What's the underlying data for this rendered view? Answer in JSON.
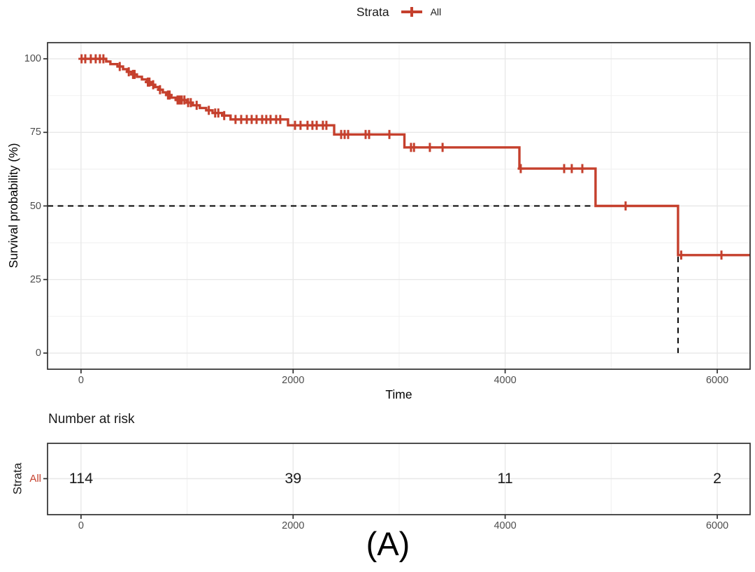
{
  "legend": {
    "title": "Strata",
    "items": [
      {
        "label": "All"
      }
    ]
  },
  "panel_label": "(A)",
  "colors": {
    "accent": "#C5402D",
    "panel_border": "#2f2f2f",
    "grid_major": "#e8e8e8",
    "grid_minor": "#f2f2f2",
    "tick_label": "#4d4d4d",
    "median_line": "#000000"
  },
  "chart_data": {
    "type": "line",
    "subtype": "kaplan-meier-step",
    "title": "",
    "xlabel": "Time",
    "ylabel": "Survival probability (%)",
    "legend_position": "top",
    "grid": true,
    "x_ticks": [
      0,
      2000,
      4000,
      6000
    ],
    "y_ticks": [
      0,
      25,
      50,
      75,
      100
    ],
    "x_minor": [
      1000,
      3000,
      5000
    ],
    "y_minor": [
      12.5,
      37.5,
      62.5,
      87.5
    ],
    "x_domain": [
      -316,
      6310
    ],
    "y_domain": [
      -5.5,
      105.5
    ],
    "median_line": {
      "time": 5630,
      "survival": 50
    },
    "series": [
      {
        "name": "All",
        "color": "#C5402D",
        "end_time": 6310,
        "events": [
          [
            0,
            100
          ],
          [
            237,
            99.1
          ],
          [
            277,
            98.2
          ],
          [
            343,
            97.4
          ],
          [
            396,
            96.5
          ],
          [
            435,
            95.6
          ],
          [
            475,
            94.7
          ],
          [
            527,
            93.9
          ],
          [
            574,
            93.0
          ],
          [
            620,
            92.1
          ],
          [
            659,
            91.2
          ],
          [
            699,
            90.4
          ],
          [
            732,
            89.5
          ],
          [
            771,
            88.6
          ],
          [
            804,
            87.7
          ],
          [
            850,
            86.8
          ],
          [
            897,
            86.0
          ],
          [
            1000,
            85.1
          ],
          [
            1055,
            84.2
          ],
          [
            1120,
            83.3
          ],
          [
            1180,
            82.5
          ],
          [
            1240,
            81.6
          ],
          [
            1330,
            80.7
          ],
          [
            1410,
            79.4
          ],
          [
            1952,
            77.4
          ],
          [
            2387,
            74.3
          ],
          [
            3050,
            69.9
          ],
          [
            4134,
            62.7
          ],
          [
            4852,
            50.0
          ],
          [
            5630,
            33.3
          ]
        ],
        "censors": [
          [
            5,
            100
          ],
          [
            40,
            100
          ],
          [
            92,
            100
          ],
          [
            138,
            100
          ],
          [
            178,
            100
          ],
          [
            211,
            100
          ],
          [
            365,
            97.4
          ],
          [
            450,
            95.6
          ],
          [
            490,
            94.7
          ],
          [
            505,
            94.7
          ],
          [
            630,
            92.1
          ],
          [
            645,
            92.1
          ],
          [
            680,
            91.2
          ],
          [
            745,
            89.5
          ],
          [
            820,
            87.7
          ],
          [
            835,
            87.7
          ],
          [
            910,
            86.0
          ],
          [
            930,
            86.0
          ],
          [
            950,
            86.0
          ],
          [
            975,
            86.0
          ],
          [
            1010,
            85.1
          ],
          [
            1035,
            85.1
          ],
          [
            1090,
            84.2
          ],
          [
            1205,
            82.5
          ],
          [
            1265,
            81.6
          ],
          [
            1295,
            81.6
          ],
          [
            1350,
            80.7
          ],
          [
            1457,
            79.4
          ],
          [
            1510,
            79.4
          ],
          [
            1563,
            79.4
          ],
          [
            1609,
            79.4
          ],
          [
            1655,
            79.4
          ],
          [
            1708,
            79.4
          ],
          [
            1747,
            79.4
          ],
          [
            1787,
            79.4
          ],
          [
            1840,
            79.4
          ],
          [
            1879,
            79.4
          ],
          [
            2018,
            77.4
          ],
          [
            2070,
            77.4
          ],
          [
            2136,
            77.4
          ],
          [
            2182,
            77.4
          ],
          [
            2222,
            77.4
          ],
          [
            2281,
            77.4
          ],
          [
            2314,
            77.4
          ],
          [
            2453,
            74.3
          ],
          [
            2486,
            74.3
          ],
          [
            2519,
            74.3
          ],
          [
            2684,
            74.3
          ],
          [
            2717,
            74.3
          ],
          [
            2908,
            74.3
          ],
          [
            3112,
            69.9
          ],
          [
            3140,
            69.9
          ],
          [
            3290,
            69.9
          ],
          [
            3410,
            69.9
          ],
          [
            4147,
            62.7
          ],
          [
            4556,
            62.7
          ],
          [
            4628,
            62.7
          ],
          [
            4728,
            62.7
          ],
          [
            5136,
            50.0
          ],
          [
            5660,
            33.3
          ],
          [
            6040,
            33.3
          ]
        ]
      }
    ]
  },
  "risk_table": {
    "title": "Number at risk",
    "axis_title": "Strata",
    "times": [
      0,
      2000,
      4000,
      6000
    ],
    "rows": [
      {
        "label": "All",
        "counts": [
          "114",
          "39",
          "11",
          "2"
        ]
      }
    ]
  }
}
